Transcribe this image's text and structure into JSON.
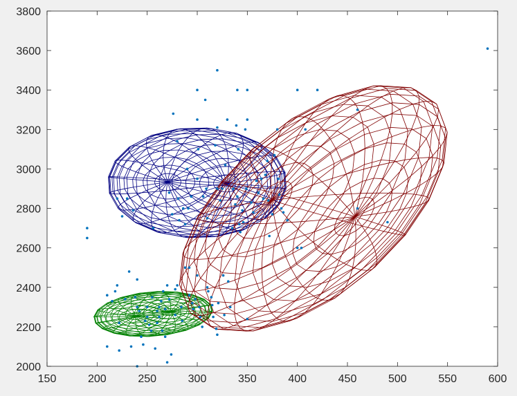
{
  "chart_data": {
    "type": "scatter",
    "title": "",
    "xlabel": "",
    "ylabel": "",
    "xlim": [
      150,
      600
    ],
    "ylim": [
      2000,
      3800
    ],
    "xticks": [
      150,
      200,
      250,
      300,
      350,
      400,
      450,
      500,
      550,
      600
    ],
    "yticks": [
      2000,
      2200,
      2400,
      2600,
      2800,
      3000,
      3200,
      3400,
      3600,
      3800
    ],
    "grid": false,
    "colors": {
      "background": "#f0f0f0",
      "axes": "#ffffff",
      "axis_line": "#262626",
      "points": "#0072bd",
      "ellipsoid_blue": "#000080",
      "ellipsoid_green": "#008000",
      "ellipsoid_red": "#800000"
    },
    "series": [
      {
        "kind": "points",
        "points": [
          [
            190,
            2700
          ],
          [
            190,
            2650
          ],
          [
            210,
            2360
          ],
          [
            210,
            2100
          ],
          [
            215,
            2330
          ],
          [
            218,
            2380
          ],
          [
            220,
            2410
          ],
          [
            220,
            2850
          ],
          [
            222,
            2220
          ],
          [
            222,
            2080
          ],
          [
            225,
            2760
          ],
          [
            228,
            2340
          ],
          [
            230,
            2850
          ],
          [
            232,
            2480
          ],
          [
            234,
            2100
          ],
          [
            236,
            2790
          ],
          [
            238,
            2350
          ],
          [
            240,
            2440
          ],
          [
            240,
            2300
          ],
          [
            240,
            2000
          ],
          [
            242,
            2280
          ],
          [
            244,
            2150
          ],
          [
            246,
            2110
          ],
          [
            248,
            2230
          ],
          [
            250,
            2300
          ],
          [
            250,
            2250
          ],
          [
            252,
            2210
          ],
          [
            254,
            2180
          ],
          [
            255,
            2350
          ],
          [
            256,
            2700
          ],
          [
            258,
            2090
          ],
          [
            260,
            2280
          ],
          [
            260,
            2220
          ],
          [
            262,
            2300
          ],
          [
            262,
            2250
          ],
          [
            264,
            2330
          ],
          [
            265,
            2180
          ],
          [
            266,
            2380
          ],
          [
            268,
            2290
          ],
          [
            268,
            2150
          ],
          [
            270,
            2410
          ],
          [
            270,
            2020
          ],
          [
            272,
            2340
          ],
          [
            272,
            2880
          ],
          [
            274,
            2060
          ],
          [
            275,
            2770
          ],
          [
            276,
            3280
          ],
          [
            278,
            2390
          ],
          [
            278,
            2260
          ],
          [
            280,
            3140
          ],
          [
            280,
            2410
          ],
          [
            281,
            2850
          ],
          [
            282,
            2740
          ],
          [
            284,
            2300
          ],
          [
            285,
            2230
          ],
          [
            286,
            2800
          ],
          [
            288,
            2500
          ],
          [
            288,
            2720
          ],
          [
            290,
            3000
          ],
          [
            291,
            2800
          ],
          [
            292,
            2500
          ],
          [
            292,
            2360
          ],
          [
            294,
            2860
          ],
          [
            295,
            2320
          ],
          [
            296,
            2290
          ],
          [
            298,
            2340
          ],
          [
            300,
            3400
          ],
          [
            300,
            3250
          ],
          [
            300,
            2950
          ],
          [
            300,
            2460
          ],
          [
            301,
            3100
          ],
          [
            302,
            2300
          ],
          [
            303,
            2250
          ],
          [
            305,
            2200
          ],
          [
            306,
            2860
          ],
          [
            308,
            3350
          ],
          [
            309,
            2900
          ],
          [
            310,
            2750
          ],
          [
            310,
            2400
          ],
          [
            311,
            2380
          ],
          [
            314,
            2350
          ],
          [
            315,
            2310
          ],
          [
            316,
            2250
          ],
          [
            318,
            3120
          ],
          [
            319,
            2190
          ],
          [
            320,
            3500
          ],
          [
            320,
            3210
          ],
          [
            320,
            2900
          ],
          [
            320,
            2160
          ],
          [
            321,
            2320
          ],
          [
            323,
            2840
          ],
          [
            325,
            2900
          ],
          [
            326,
            2460
          ],
          [
            327,
            2260
          ],
          [
            328,
            3020
          ],
          [
            330,
            3250
          ],
          [
            331,
            2430
          ],
          [
            333,
            2300
          ],
          [
            335,
            2700
          ],
          [
            336,
            2900
          ],
          [
            338,
            2820
          ],
          [
            339,
            3220
          ],
          [
            340,
            3400
          ],
          [
            340,
            2860
          ],
          [
            341,
            3100
          ],
          [
            342,
            2720
          ],
          [
            343,
            2680
          ],
          [
            345,
            2790
          ],
          [
            346,
            2730
          ],
          [
            348,
            3200
          ],
          [
            349,
            2900
          ],
          [
            350,
            3400
          ],
          [
            350,
            3250
          ],
          [
            350,
            2240
          ],
          [
            354,
            2830
          ],
          [
            356,
            2780
          ],
          [
            359,
            2940
          ],
          [
            361,
            2880
          ],
          [
            364,
            2950
          ],
          [
            366,
            2850
          ],
          [
            368,
            2970
          ],
          [
            370,
            3040
          ],
          [
            371,
            2840
          ],
          [
            372,
            2660
          ],
          [
            375,
            2770
          ],
          [
            377,
            3070
          ],
          [
            380,
            3200
          ],
          [
            381,
            2950
          ],
          [
            382,
            2870
          ],
          [
            384,
            2800
          ],
          [
            386,
            2780
          ],
          [
            390,
            2740
          ],
          [
            400,
            3400
          ],
          [
            400,
            2600
          ],
          [
            404,
            2600
          ],
          [
            408,
            3200
          ],
          [
            420,
            3400
          ],
          [
            460,
            2800
          ],
          [
            460,
            3300
          ],
          [
            490,
            2730
          ],
          [
            590,
            3610
          ]
        ]
      },
      {
        "kind": "ellipsoid",
        "color": "blue",
        "center": [
          300,
          2930
        ],
        "semi_major": [
          57,
          207
        ],
        "semi_minor": [
          62,
          -188
        ]
      },
      {
        "kind": "ellipsoid",
        "color": "green",
        "center": [
          256,
          2265
        ],
        "semi_major": [
          55,
          45
        ],
        "semi_minor": [
          14,
          -105
        ]
      },
      {
        "kind": "ellipsoid",
        "color": "red",
        "center": [
          416,
          2800
        ],
        "semi_major": [
          118,
          542
        ],
        "semi_minor": [
          48,
          -312
        ]
      }
    ]
  }
}
